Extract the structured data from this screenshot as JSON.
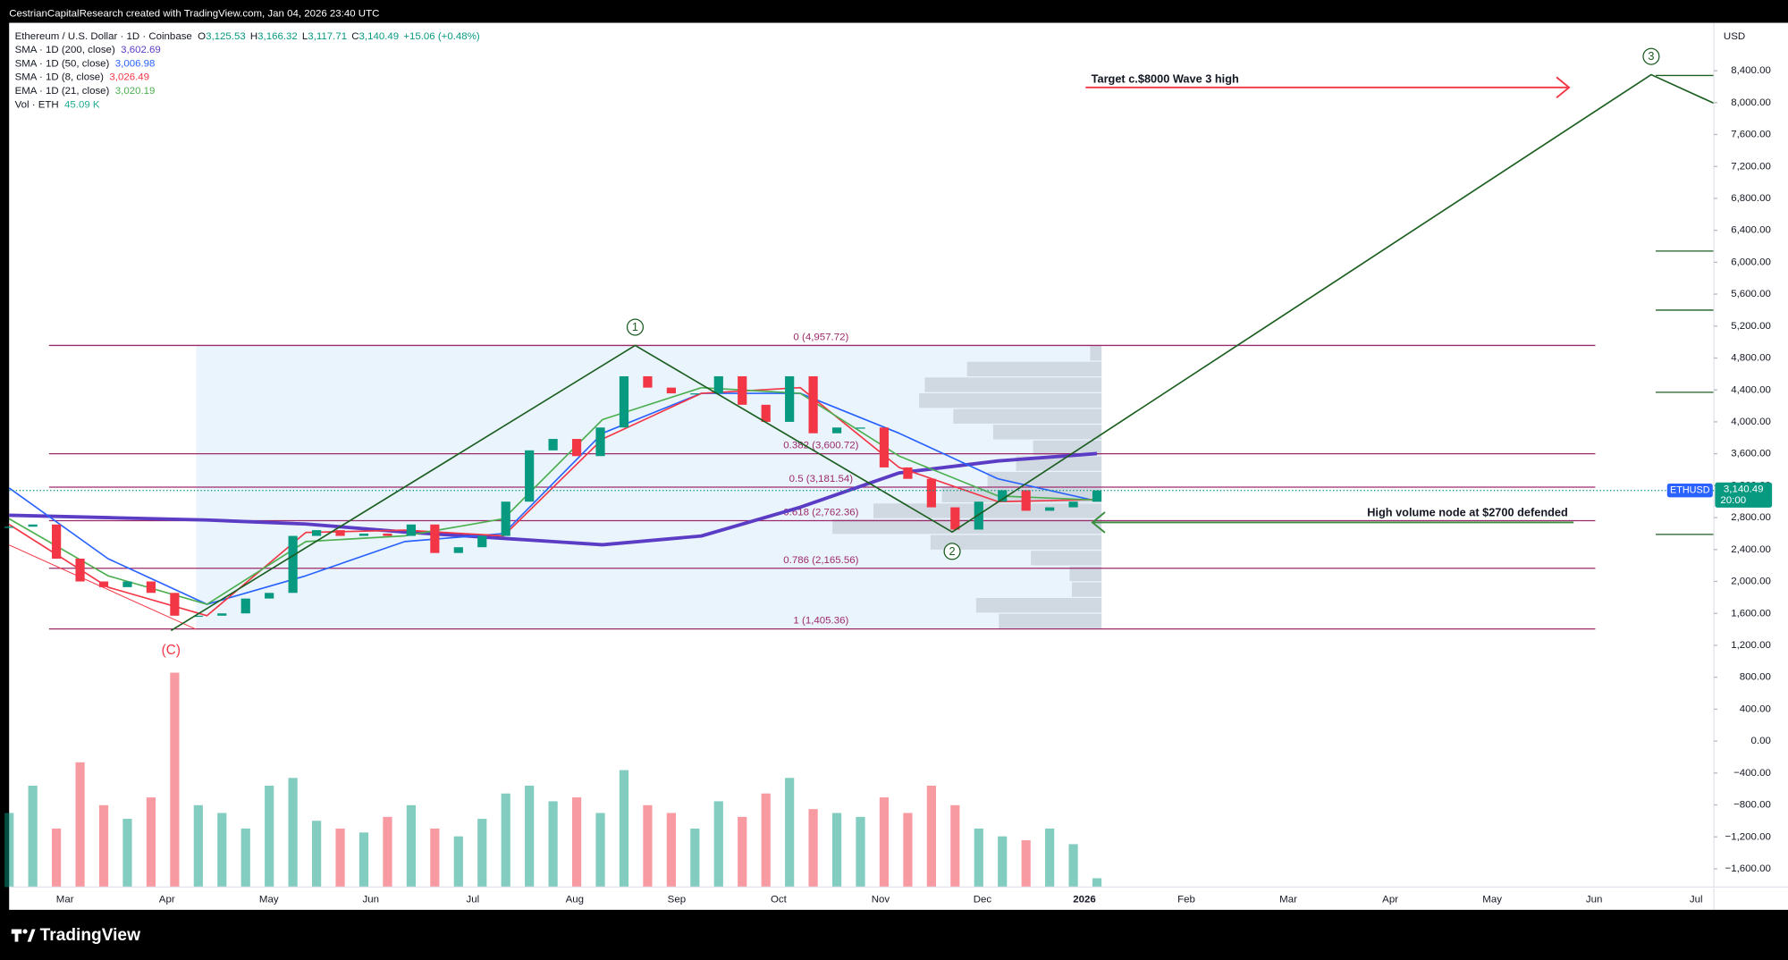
{
  "header": {
    "attribution": "CestrianCapitalResearch created with TradingView.com, Jan 04, 2026 23:40 UTC"
  },
  "footer": {
    "brand": "TradingView"
  },
  "chart_data": {
    "type": "candlestick",
    "title": "Ethereum / U.S. Dollar · 1D · Coinbase",
    "ohlc": [
      {
        "label": "O",
        "value": "3,125.53"
      },
      {
        "label": "H",
        "value": "3,166.32"
      },
      {
        "label": "L",
        "value": "3,117.71"
      },
      {
        "label": "C",
        "value": "3,140.49"
      }
    ],
    "change": "+15.06 (+0.48%)",
    "axis_unit": "USD",
    "price": {
      "name": "ETHUSD",
      "value_label": "3,140.49",
      "countdown": "20:00",
      "last": 3140.49,
      "up_color": "#089981",
      "down_color": "#f23645",
      "values": [
        2686,
        2714,
        2286,
        2000,
        1929,
        2000,
        1857,
        1571,
        1571,
        1600,
        1786,
        1857,
        2571,
        2643,
        2571,
        2600,
        2571,
        2714,
        2357,
        2429,
        2571,
        3000,
        3643,
        3786,
        3571,
        3929,
        4571,
        4429,
        4357,
        4357,
        4571,
        4214,
        4000,
        4571,
        3857,
        3929,
        3929,
        3429,
        3286,
        2929,
        2650,
        3000,
        3143,
        2886,
        2929,
        3000,
        3140.49
      ]
    },
    "series": [
      {
        "name": "SMA · 1D (200, close)",
        "value_label": "3,602.69",
        "color": "#5b3cc4",
        "width": 3,
        "values": [
          2830,
          2800,
          2770,
          2720,
          2620,
          2540,
          2460,
          2570,
          2930,
          3360,
          3510,
          3602.69
        ]
      },
      {
        "name": "SMA · 1D (50, close)",
        "value_label": "3,006.98",
        "color": "#2962ff",
        "width": 1.3,
        "values": [
          3171,
          2286,
          1714,
          2071,
          2500,
          2600,
          3857,
          4357,
          4357,
          3857,
          3286,
          3006.98
        ]
      },
      {
        "name": "SMA · 1D (8, close)",
        "value_label": "3,026.49",
        "color": "#f23645",
        "width": 1.3,
        "values": [
          2714,
          1929,
          1571,
          2614,
          2643,
          2571,
          3786,
          4357,
          4429,
          3429,
          3000,
          3026.49
        ]
      },
      {
        "name": "EMA · 1D (21, close)",
        "value_label": "3,020.19",
        "color": "#4caf50",
        "width": 1.3,
        "values": [
          2786,
          2071,
          1714,
          2500,
          2571,
          2786,
          4029,
          4429,
          4357,
          3571,
          3071,
          3020.19
        ]
      }
    ],
    "volume": {
      "name": "Vol · ETH",
      "value_label": "45.09 K",
      "color": "#22ab94",
      "values": [
        380,
        520,
        300,
        640,
        420,
        350,
        460,
        1100,
        420,
        380,
        300,
        520,
        560,
        340,
        300,
        280,
        360,
        420,
        300,
        260,
        350,
        480,
        520,
        440,
        460,
        380,
        600,
        420,
        380,
        300,
        440,
        360,
        480,
        560,
        400,
        380,
        360,
        460,
        380,
        520,
        420,
        300,
        260,
        240,
        300,
        220,
        45.09
      ]
    },
    "fib_levels": [
      {
        "value": 4957.72,
        "label": "0 (4,957.72)"
      },
      {
        "value": 3600.72,
        "label": "0.382 (3,600.72)"
      },
      {
        "value": 3181.54,
        "label": "0.5 (3,181.54)"
      },
      {
        "value": 2762.36,
        "label": "0.618 (2,762.36)"
      },
      {
        "value": 2165.56,
        "label": "0.786 (2,165.56)"
      },
      {
        "value": 1405.36,
        "label": "1 (1,405.36)"
      }
    ],
    "fib_color": "#9c2a6b",
    "volume_profile": [
      10,
      118,
      155,
      160,
      130,
      95,
      60,
      75,
      100,
      140,
      200,
      236,
      150,
      62,
      28,
      26,
      110,
      90
    ],
    "waves": [
      {
        "label": "(C)",
        "price": 1385,
        "color": "#f23645"
      },
      {
        "label": "1",
        "price": 4957.72,
        "color": "#1b5e20"
      },
      {
        "label": "2",
        "price": 2620,
        "color": "#1b5e20"
      },
      {
        "label": "3",
        "price": 8350,
        "color": "#1b5e20"
      }
    ],
    "annotations": [
      {
        "text": "Target c.$8000 Wave 3 high",
        "price": 8190,
        "color": "#f23645"
      },
      {
        "text": "High volume node at $2700 defended",
        "price": 2740,
        "color": "#388e3c"
      }
    ],
    "projection_levels": [
      8340,
      6140,
      5400,
      4370,
      2590
    ],
    "x_labels": [
      "Mar",
      "Apr",
      "May",
      "Jun",
      "Jul",
      "Aug",
      "Sep",
      "Oct",
      "Nov",
      "Dec",
      "2026",
      "Feb",
      "Mar",
      "Apr",
      "May",
      "Jun",
      "Jul"
    ],
    "ylim": [
      -1828.6,
      9000
    ],
    "yticks": [
      {
        "value": 8400,
        "label": "8,400.00"
      },
      {
        "value": 8000,
        "label": "8,000.00"
      },
      {
        "value": 7600,
        "label": "7,600.00"
      },
      {
        "value": 7200,
        "label": "7,200.00"
      },
      {
        "value": 6800,
        "label": "6,800.00"
      },
      {
        "value": 6400,
        "label": "6,400.00"
      },
      {
        "value": 6000,
        "label": "6,000.00"
      },
      {
        "value": 5600,
        "label": "5,600.00"
      },
      {
        "value": 5200,
        "label": "5,200.00"
      },
      {
        "value": 4800,
        "label": "4,800.00"
      },
      {
        "value": 4400,
        "label": "4,400.00"
      },
      {
        "value": 4000,
        "label": "4,000.00"
      },
      {
        "value": 3600,
        "label": "3,600.00"
      },
      {
        "value": 3200,
        "label": "3,200.00"
      },
      {
        "value": 2800,
        "label": "2,800.00"
      },
      {
        "value": 2400,
        "label": "2,400.00"
      },
      {
        "value": 2000,
        "label": "2,000.00"
      },
      {
        "value": 1600,
        "label": "1,600.00"
      },
      {
        "value": 1200,
        "label": "1,200.00"
      },
      {
        "value": 800,
        "label": "800.00"
      },
      {
        "value": 400,
        "label": "400.00"
      },
      {
        "value": 0,
        "label": "0.00"
      },
      {
        "value": -400,
        "label": "−400.00"
      },
      {
        "value": -800,
        "label": "−800.00"
      },
      {
        "value": -1200,
        "label": "−1,200.00"
      },
      {
        "value": -1600,
        "label": "−1,600.00"
      }
    ],
    "grid": false
  }
}
